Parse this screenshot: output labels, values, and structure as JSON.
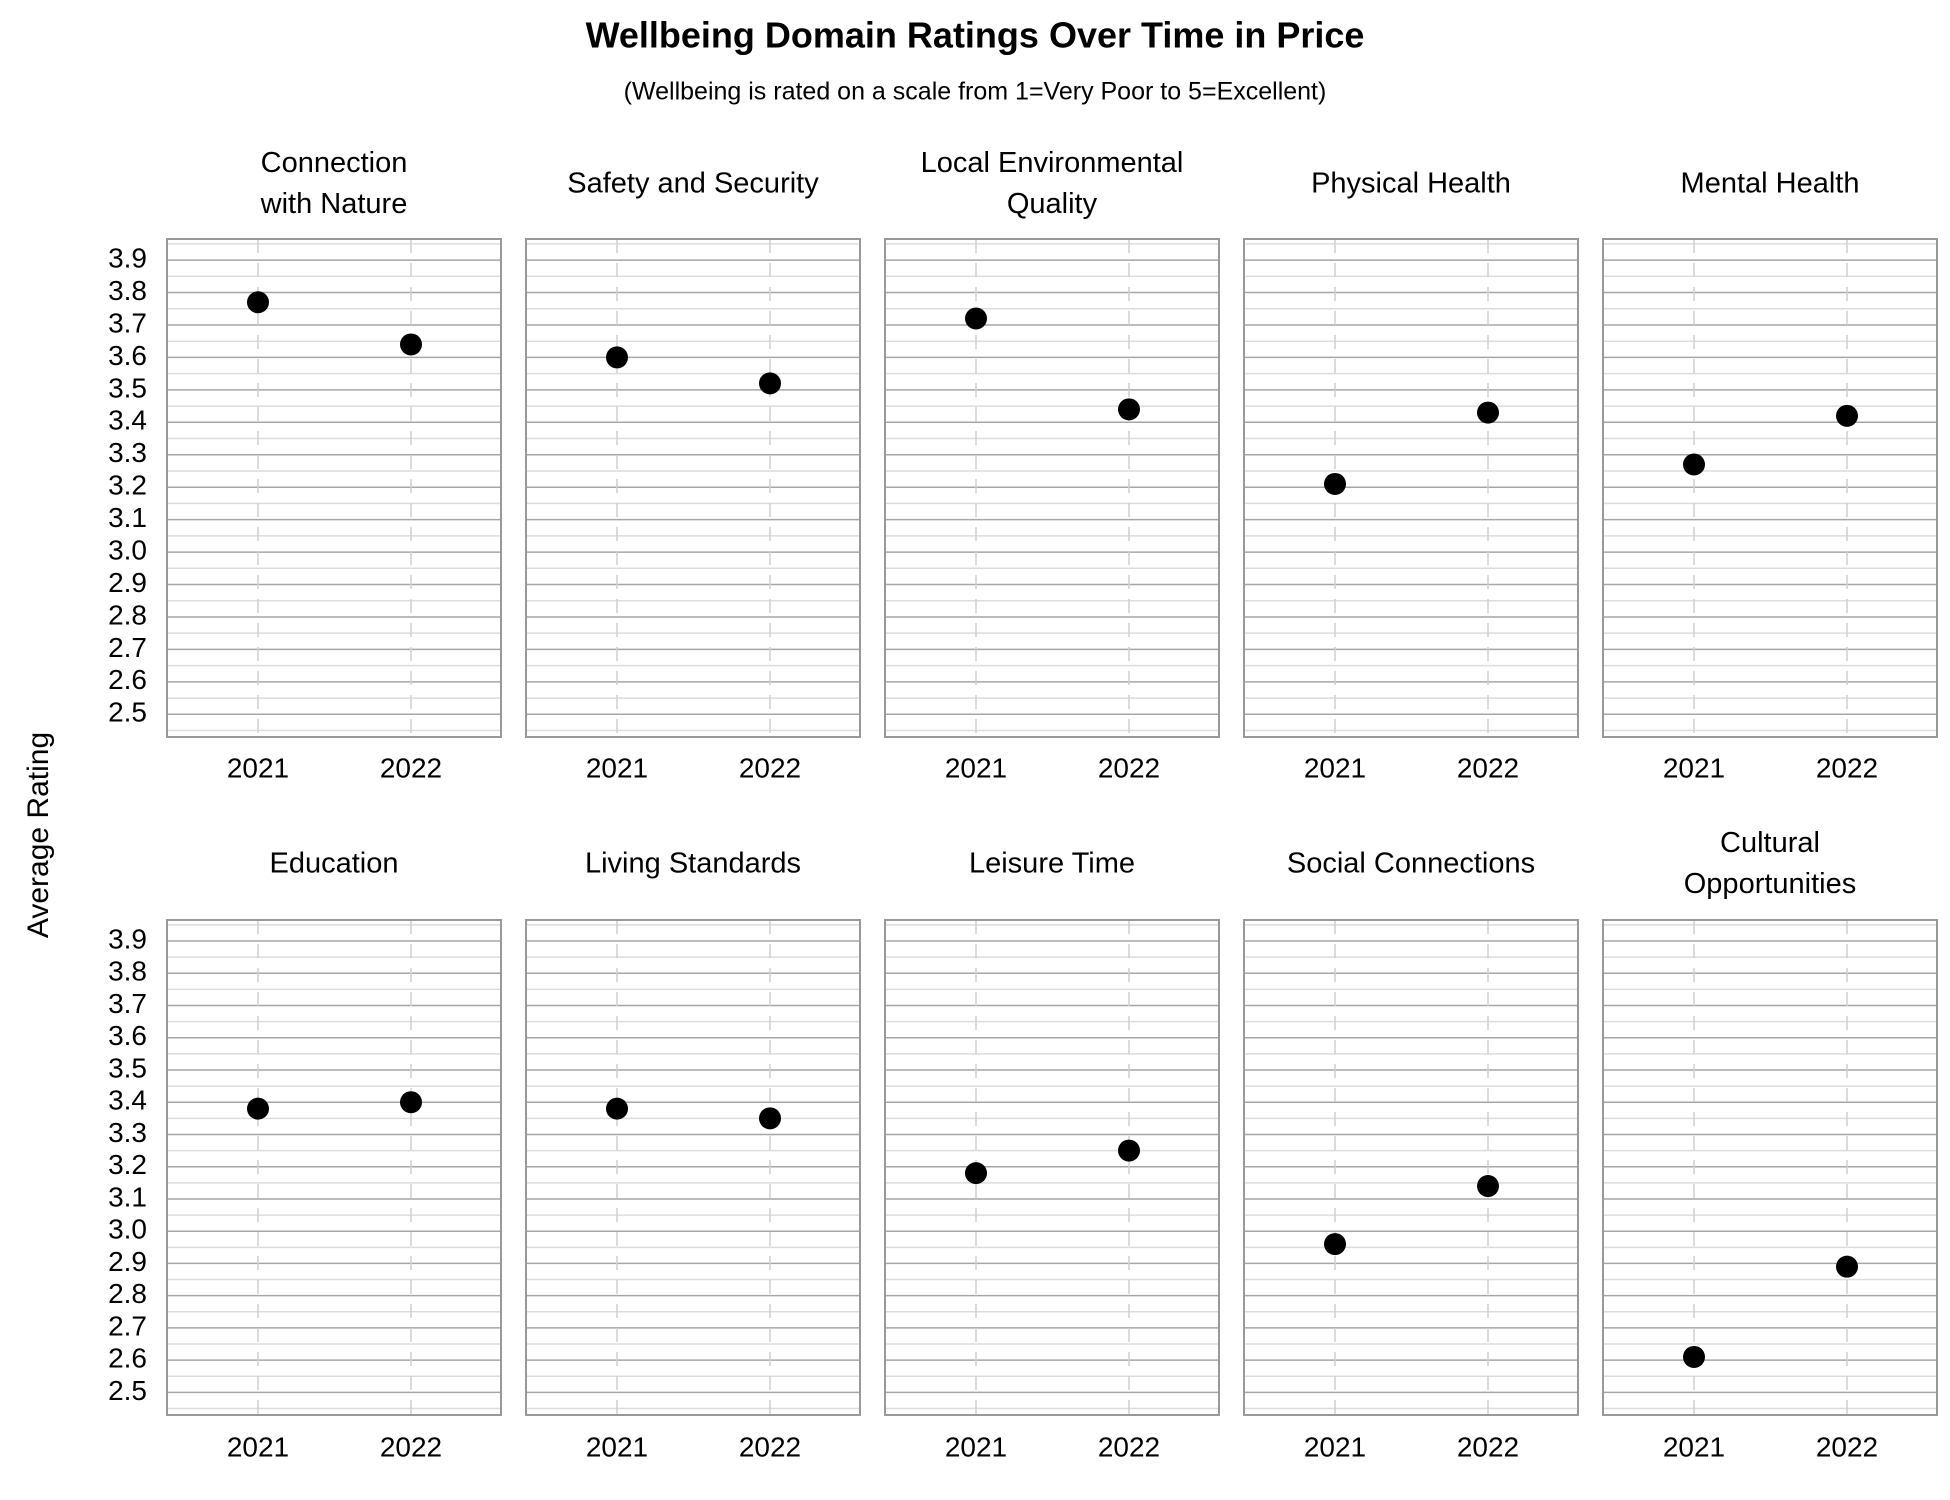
{
  "chart_data": {
    "type": "scatter",
    "title": "Wellbeing Domain Ratings Over Time in Price",
    "subtitle": "(Wellbeing is rated on a scale from 1=Very Poor to 5=Excellent)",
    "y_label": "Average Rating",
    "categories": [
      "2021",
      "2022"
    ],
    "ylim": [
      2.43,
      3.965
    ],
    "yticks": [
      2.5,
      2.6,
      2.7,
      2.8,
      2.9,
      {
        "value": 3,
        "label": "3.0"
      },
      3.1,
      3.2,
      3.3,
      3.4,
      3.5,
      3.6,
      3.7,
      3.8,
      3.9
    ],
    "minor_yticks": [
      2.45,
      2.55,
      2.65,
      2.75,
      2.85,
      2.95,
      3.05,
      3.15,
      3.25,
      3.35,
      3.45,
      3.55,
      3.65,
      3.75,
      3.85,
      3.95
    ],
    "grid": true,
    "color": "#000000",
    "panels": [
      {
        "title": [
          "Connection",
          "with Nature"
        ],
        "values": [
          3.77,
          3.64
        ]
      },
      {
        "title": [
          "Safety and Security"
        ],
        "values": [
          3.6,
          3.52
        ]
      },
      {
        "title": [
          "Local Environmental",
          "Quality"
        ],
        "values": [
          3.72,
          3.44
        ]
      },
      {
        "title": [
          "Physical Health"
        ],
        "values": [
          3.21,
          3.43
        ]
      },
      {
        "title": [
          "Mental Health"
        ],
        "values": [
          3.27,
          3.42
        ]
      },
      {
        "title": [
          "Education"
        ],
        "values": [
          3.38,
          3.4
        ]
      },
      {
        "title": [
          "Living Standards"
        ],
        "values": [
          3.38,
          3.35
        ]
      },
      {
        "title": [
          "Leisure Time"
        ],
        "values": [
          3.18,
          3.25
        ]
      },
      {
        "title": [
          "Social Connections"
        ],
        "values": [
          2.96,
          3.14
        ]
      },
      {
        "title": [
          "Cultural",
          "Opportunities"
        ],
        "values": [
          2.61,
          2.89
        ]
      }
    ]
  }
}
